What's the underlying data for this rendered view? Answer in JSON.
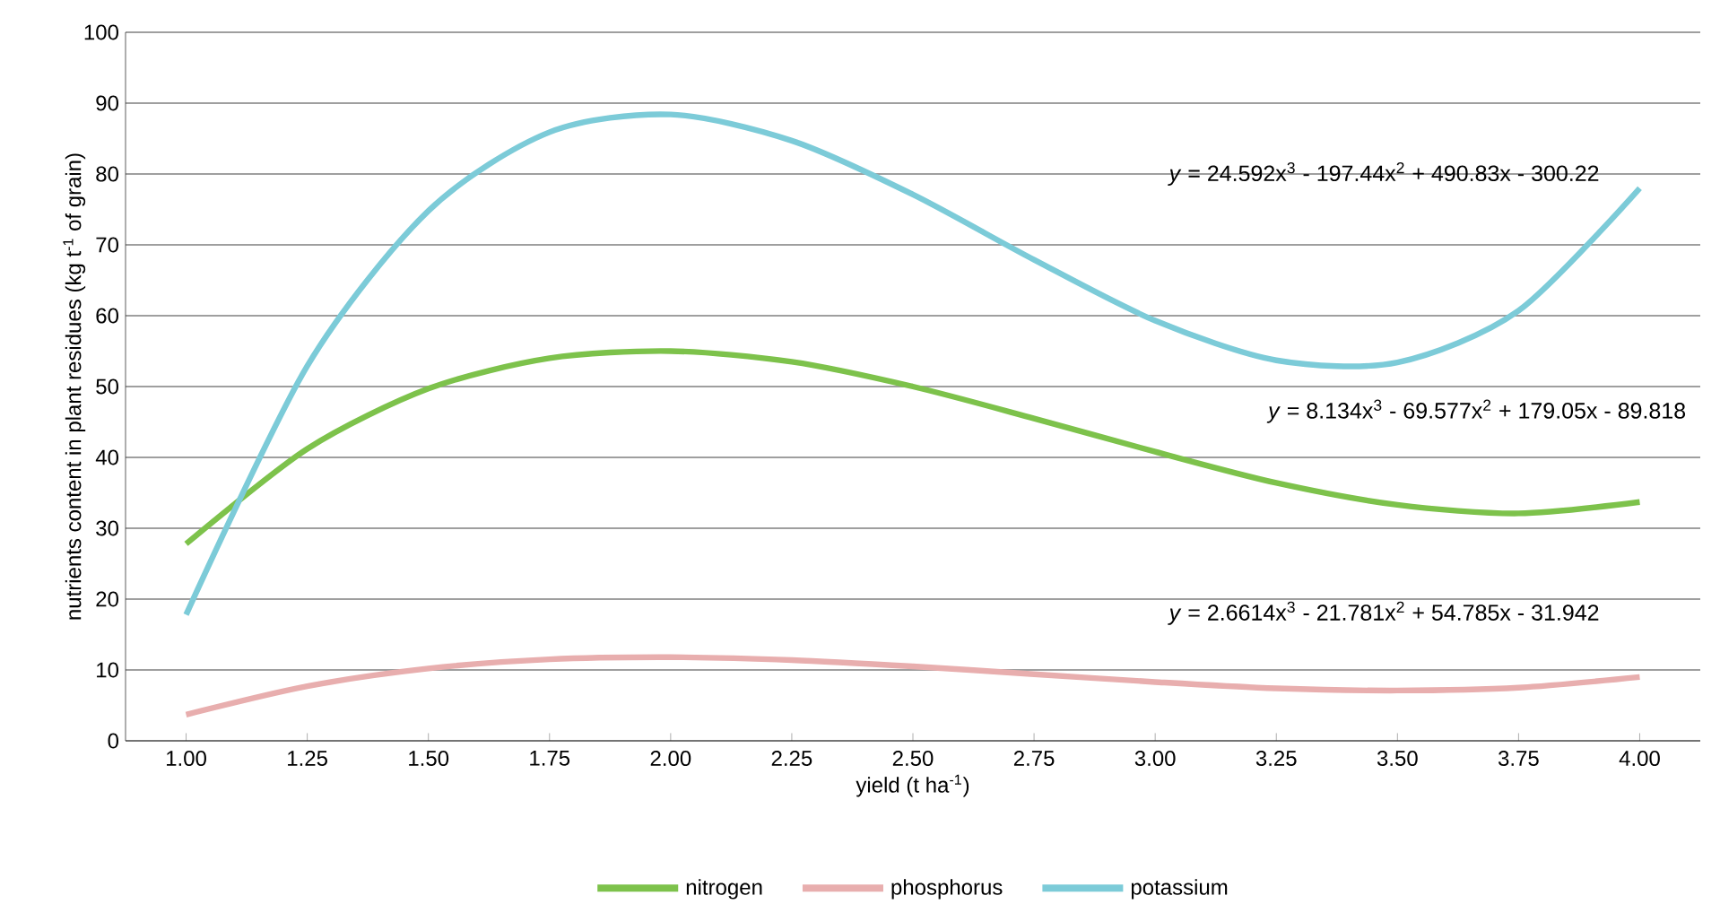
{
  "chart_data": {
    "type": "line",
    "xlabel": "yield (t ha$^{-1}$)",
    "ylabel": "nutrients content in plant residues (kg t$^{-1}$ of grain)",
    "x": [
      1,
      1.25,
      1.5,
      1.75,
      2,
      2.25,
      2.5,
      2.75,
      3,
      3.25,
      3.5,
      3.75,
      4
    ],
    "series": [
      {
        "name": "nitrogen",
        "color": "#7dc24b",
        "values": [
          27.8,
          41.2,
          49.7,
          54.0,
          55.0,
          53.5,
          50.0,
          45.5,
          40.8,
          36.4,
          33.3,
          32.1,
          33.7
        ]
      },
      {
        "name": "phosphorus",
        "color": "#e8aeae",
        "values": [
          3.7,
          7.7,
          10.2,
          11.5,
          11.8,
          11.4,
          10.5,
          9.4,
          8.3,
          7.4,
          7.1,
          7.5,
          9.0
        ]
      },
      {
        "name": "potassium",
        "color": "#7ccbd8",
        "values": [
          17.8,
          52.9,
          74.8,
          85.9,
          88.4,
          84.7,
          77.1,
          67.9,
          59.3,
          53.7,
          53.4,
          60.7,
          78.0
        ]
      }
    ],
    "xlim": [
      0.875,
      4.125
    ],
    "ylim": [
      0,
      100
    ],
    "xticks": [
      {
        "value": 1,
        "label": "1.00"
      },
      {
        "value": 1.25,
        "label": "1.25"
      },
      {
        "value": 1.5,
        "label": "1.50"
      },
      {
        "value": 1.75,
        "label": "1.75"
      },
      {
        "value": 2,
        "label": "2.00"
      },
      {
        "value": 2.25,
        "label": "2.25"
      },
      {
        "value": 2.5,
        "label": "2.50"
      },
      {
        "value": 2.75,
        "label": "2.75"
      },
      {
        "value": 3,
        "label": "3.00"
      },
      {
        "value": 3.25,
        "label": "3.25"
      },
      {
        "value": 3.5,
        "label": "3.50"
      },
      {
        "value": 3.75,
        "label": "3.75"
      },
      {
        "value": 4,
        "label": "4.00"
      }
    ],
    "yticks": [
      0,
      10,
      20,
      30,
      40,
      50,
      60,
      70,
      80,
      90,
      100
    ],
    "annotations": [
      "*y* = 24.592x$^{3}$ - 197.44x$^{2}$ + 490.83x - 300.22",
      "*y* = 8.134x$^{3}$ - 69.577x$^{2}$ + 179.05x - 89.818",
      "*y* = 2.6614x$^{3}$ - 21.781x$^{2}$ + 54.785x - 31.942"
    ],
    "grid": "y",
    "legend": "bottom",
    "marker": "none",
    "line_style": "solid"
  }
}
